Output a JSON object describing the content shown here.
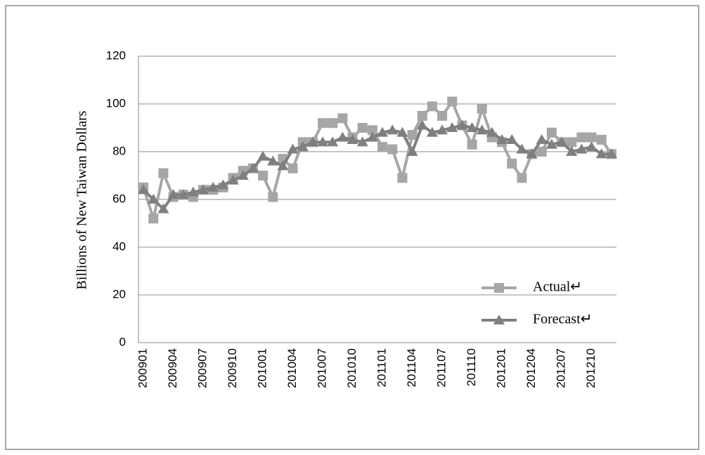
{
  "chart_data": {
    "type": "line",
    "y_label": "Billions of New Taiwan Dollars",
    "categories": [
      "200901",
      null,
      null,
      "200904",
      null,
      null,
      "200907",
      null,
      null,
      "200910",
      null,
      null,
      "201001",
      null,
      null,
      "201004",
      null,
      null,
      "201007",
      null,
      null,
      "201010",
      null,
      null,
      "201101",
      null,
      null,
      "201104",
      null,
      null,
      "201107",
      null,
      null,
      "201110",
      null,
      null,
      "201201",
      null,
      null,
      "201204",
      null,
      null,
      "201207",
      null,
      null,
      "201210",
      null,
      null
    ],
    "series": [
      {
        "name": "Actual↵",
        "color": "#a6a6a6",
        "marker": "square",
        "values": [
          65,
          52,
          71,
          61,
          62,
          61,
          64,
          64,
          65,
          69,
          72,
          73,
          70,
          61,
          77,
          73,
          84,
          84,
          92,
          92,
          94,
          86,
          90,
          89,
          82,
          81,
          69,
          87,
          95,
          99,
          95,
          101,
          91,
          83,
          98,
          86,
          84,
          75,
          69,
          79,
          80,
          88,
          84,
          84,
          86,
          86,
          85,
          79
        ]
      },
      {
        "name": "Forecast↵",
        "color": "#7f7f7f",
        "marker": "triangle",
        "values": [
          64,
          60,
          56,
          62,
          62,
          63,
          64,
          65,
          66,
          68,
          70,
          73,
          78,
          76,
          74,
          81,
          82,
          84,
          84,
          84,
          86,
          85,
          84,
          86,
          88,
          89,
          88,
          80,
          91,
          88,
          89,
          90,
          91,
          90,
          89,
          88,
          85,
          85,
          81,
          79,
          85,
          83,
          84,
          80,
          81,
          82,
          79,
          79
        ]
      }
    ],
    "ylim": [
      0,
      120
    ],
    "yticks": [
      0,
      20,
      40,
      60,
      80,
      100,
      120
    ],
    "grid": true
  }
}
